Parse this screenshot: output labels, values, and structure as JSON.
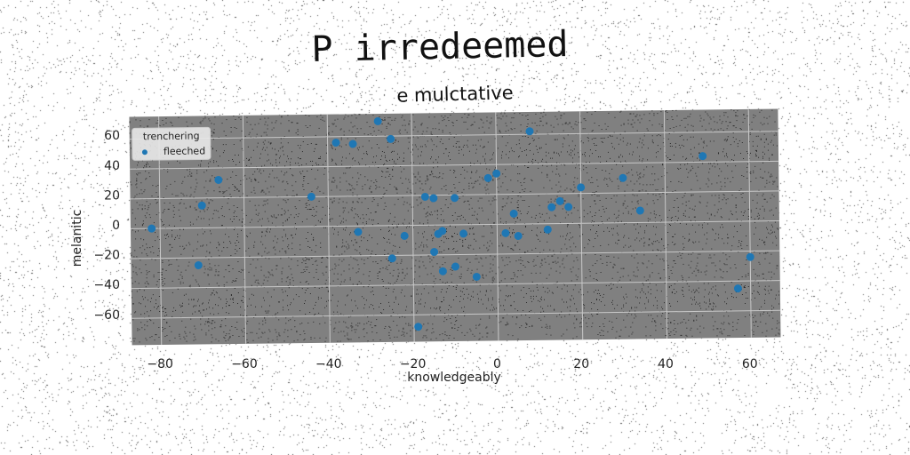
{
  "title": "P irredeemed",
  "subtitle": "e mulctative",
  "chart_data": {
    "type": "scatter",
    "title": "P irredeemed",
    "subtitle": "e mulctative",
    "xlabel": "knowledgeably",
    "ylabel": "melanitic",
    "xlim": [
      -87,
      67
    ],
    "ylim": [
      -78,
      75
    ],
    "xticks": [
      -80,
      -60,
      -40,
      -20,
      0,
      20,
      40,
      60
    ],
    "yticks": [
      -60,
      -40,
      -20,
      0,
      20,
      40,
      60
    ],
    "xtick_labels": [
      "−80",
      "−60",
      "−40",
      "−20",
      "0",
      "20",
      "40",
      "60"
    ],
    "ytick_labels": [
      "−60",
      "−40",
      "−20",
      "0",
      "20",
      "40",
      "60"
    ],
    "grid": true,
    "background_color": "#808080",
    "legend": {
      "title": "trenchering",
      "position": "top-left",
      "entries": [
        "fleeched"
      ]
    },
    "series": [
      {
        "name": "fleeched",
        "color": "#1f77b4",
        "points": [
          [
            -82,
            0
          ],
          [
            -71,
            -25
          ],
          [
            -70,
            15
          ],
          [
            -66,
            32
          ],
          [
            -44,
            20
          ],
          [
            -38,
            56
          ],
          [
            -34,
            55
          ],
          [
            -33,
            -4
          ],
          [
            -28,
            70
          ],
          [
            -25,
            58
          ],
          [
            -25,
            -22
          ],
          [
            -22,
            -7
          ],
          [
            -19,
            -68
          ],
          [
            -17,
            19
          ],
          [
            -15,
            18
          ],
          [
            -15,
            -18
          ],
          [
            -14,
            -6
          ],
          [
            -13,
            -31
          ],
          [
            -13,
            -4
          ],
          [
            -10,
            18
          ],
          [
            -10,
            -28
          ],
          [
            -8,
            -6
          ],
          [
            -5,
            -35
          ],
          [
            -2,
            31
          ],
          [
            0,
            34
          ],
          [
            2,
            -6
          ],
          [
            4,
            7
          ],
          [
            5,
            -8
          ],
          [
            8,
            62
          ],
          [
            12,
            -4
          ],
          [
            13,
            11
          ],
          [
            15,
            15
          ],
          [
            17,
            11
          ],
          [
            20,
            24
          ],
          [
            30,
            30
          ],
          [
            34,
            8
          ],
          [
            49,
            44
          ],
          [
            57,
            -45
          ],
          [
            60,
            -24
          ]
        ]
      }
    ]
  }
}
